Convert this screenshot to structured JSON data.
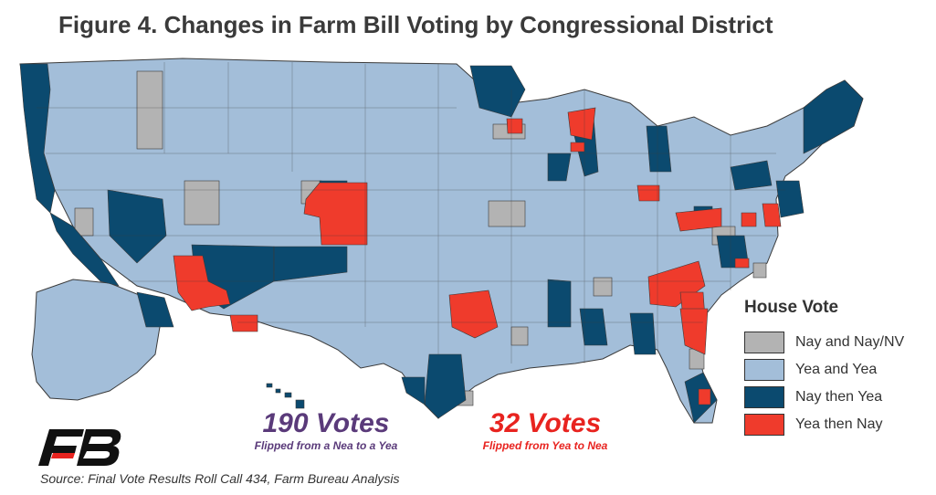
{
  "title": "Figure 4. Changes in Farm Bill Voting by Congressional District",
  "legend": {
    "title": "House Vote",
    "items": [
      {
        "label": "Nay and Nay/NV",
        "color": "#b3b3b3"
      },
      {
        "label": "Yea and Yea",
        "color": "#a3bed9"
      },
      {
        "label": "Nay then Yea",
        "color": "#0b4a6f"
      },
      {
        "label": "Yea then Nay",
        "color": "#ef3b2c"
      }
    ]
  },
  "stats": {
    "left": {
      "number": "190 Votes",
      "caption": "Flipped from a Nea to a Yea",
      "color": "#5a3a7a"
    },
    "right": {
      "number": "32 Votes",
      "caption": "Flipped from Yea to Nea",
      "color": "#e8231f"
    }
  },
  "source": "Source: Final Vote Results Roll Call 434, Farm Bureau Analysis",
  "logo": {
    "icon": "farm-bureau-logo",
    "color": "#111111",
    "accent": "#e8231f"
  }
}
